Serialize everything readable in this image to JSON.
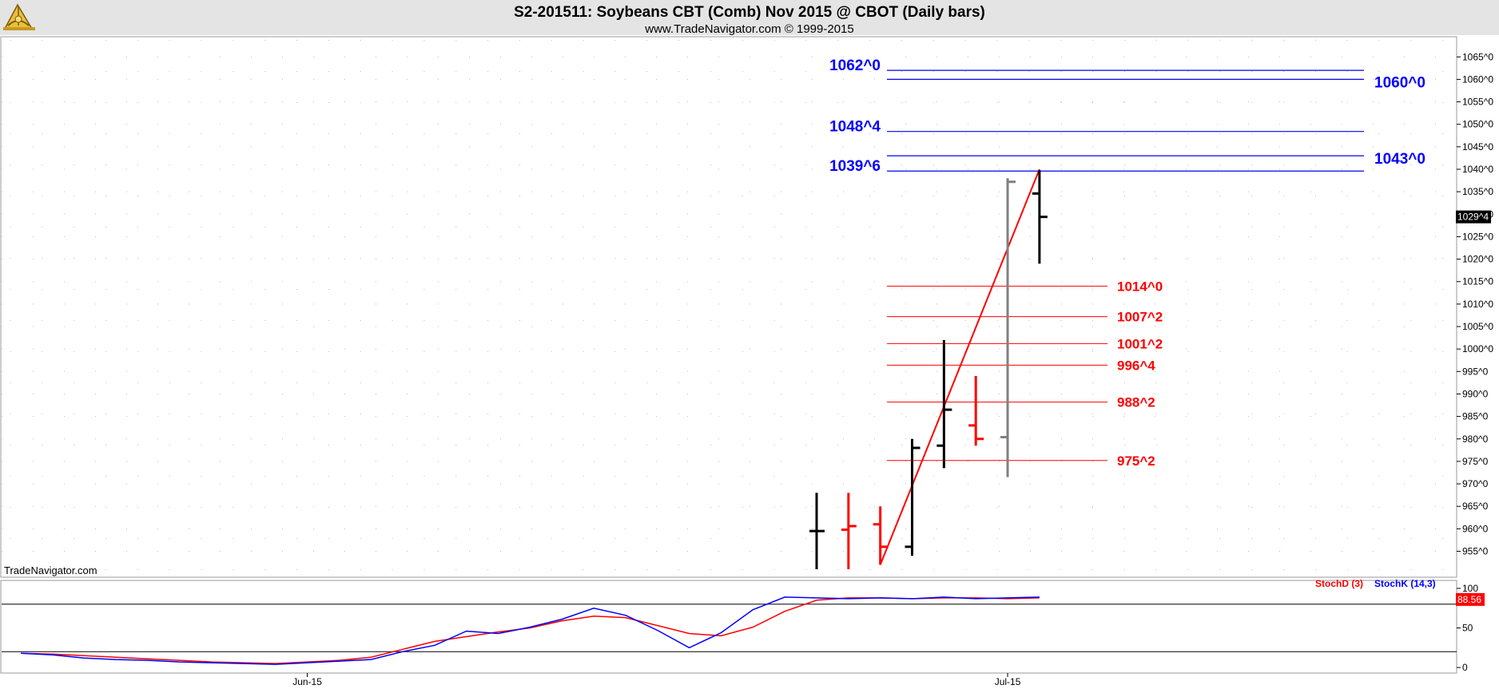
{
  "header": {
    "title": "S2-201511:  Soybeans CBT (Comb) Nov 2015 @ CBOT  (Daily bars)",
    "subtitle": "www.TradeNavigator.com © 1999-2015",
    "logo_icon": "sextant-logo-icon"
  },
  "watermark": "TradeNavigator.com",
  "colors": {
    "background": "#ffffff",
    "header_bg": "#e4e4e4",
    "up_bar": "#000000",
    "down_bar": "#ff0000",
    "gray_bar": "#808080",
    "blue_level": "#0000ff",
    "red_level": "#ff0000",
    "trendline": "#ff0000",
    "stoch_d": "#ff0000",
    "stoch_k": "#0000ff",
    "last_price_bg": "#000000",
    "stoch_badge_bg": "#ff0000"
  },
  "chart_data": [
    {
      "type": "ohlc",
      "ylim": [
        951,
        1067
      ],
      "grid": true,
      "y_ticks": [
        955,
        960,
        965,
        970,
        975,
        980,
        985,
        990,
        995,
        1000,
        1005,
        1010,
        1015,
        1020,
        1025,
        1030,
        1035,
        1040,
        1045,
        1050,
        1055,
        1060,
        1065
      ],
      "y_tick_labels": [
        "955^0",
        "960^0",
        "965^0",
        "970^0",
        "975^0",
        "980^0",
        "985^0",
        "990^0",
        "995^0",
        "1000^0",
        "1005^0",
        "1010^0",
        "1015^0",
        "1020^0",
        "1025^0",
        "1030^0",
        "1035^0",
        "1040^0",
        "1045^0",
        "1050^0",
        "1055^0",
        "1060^0",
        "1065^0"
      ],
      "x_labels": [
        {
          "label": "Jun-15",
          "index": 9
        },
        {
          "label": "Jul-15",
          "index": 31
        }
      ],
      "bars": [
        {
          "index": 25,
          "open": 959.5,
          "high": 968,
          "low": 951,
          "close": 959.5,
          "color": "black"
        },
        {
          "index": 26,
          "open": 959.8,
          "high": 968,
          "low": 951,
          "close": 960.6,
          "color": "red"
        },
        {
          "index": 27,
          "open": 961,
          "high": 965,
          "low": 952,
          "close": 956,
          "color": "red"
        },
        {
          "index": 28,
          "open": 956,
          "high": 980,
          "low": 954,
          "close": 978,
          "color": "black"
        },
        {
          "index": 29,
          "open": 978.5,
          "high": 1002,
          "low": 973.5,
          "close": 986.5,
          "color": "black"
        },
        {
          "index": 30,
          "open": 983,
          "high": 994,
          "low": 978.5,
          "close": 980,
          "color": "red"
        },
        {
          "index": 31,
          "open": 980.4,
          "high": 1038,
          "low": 971.5,
          "close": 1037.2,
          "color": "gray"
        },
        {
          "index": 32,
          "open": 1034.6,
          "high": 1039.8,
          "low": 1019,
          "close": 1029.4,
          "color": "black"
        }
      ],
      "last_price": 1029.4,
      "last_price_label": "1029^4",
      "trendline": {
        "from": {
          "index": 27,
          "price": 952
        },
        "to": {
          "index": 32,
          "price": 1040
        }
      },
      "resistance_levels": [
        {
          "price": 1062.0,
          "label": "1062^0",
          "label_side": "left"
        },
        {
          "price": 1060.0,
          "label": "1060^0",
          "label_side": "right"
        },
        {
          "price": 1048.4,
          "label": "1048^4",
          "label_side": "left"
        },
        {
          "price": 1043.0,
          "label": "1043^0",
          "label_side": "right"
        },
        {
          "price": 1039.6,
          "label": "1039^6",
          "label_side": "left"
        }
      ],
      "support_levels": [
        {
          "price": 1014.0,
          "label": "1014^0"
        },
        {
          "price": 1007.2,
          "label": "1007^2"
        },
        {
          "price": 1001.2,
          "label": "1001^2"
        },
        {
          "price": 996.4,
          "label": "996^4"
        },
        {
          "price": 988.2,
          "label": "988^2"
        },
        {
          "price": 975.2,
          "label": "975^2"
        }
      ]
    },
    {
      "type": "line",
      "ylim": [
        -6,
        102
      ],
      "y_ticks": [
        0,
        50,
        100
      ],
      "y_tick_labels": [
        "0",
        "50",
        "100"
      ],
      "reference_lines": [
        80,
        20
      ],
      "series": [
        {
          "name": "StochD (3)",
          "color": "red",
          "x": [
            0,
            1,
            2,
            3,
            4,
            5,
            6,
            7,
            8,
            9,
            10,
            11,
            12,
            13,
            14,
            15,
            16,
            17,
            18,
            19,
            20,
            21,
            22,
            23,
            24,
            25,
            26,
            27,
            28,
            29,
            30,
            31,
            32
          ],
          "values": [
            18,
            17,
            15,
            13,
            11,
            9,
            7,
            6,
            5,
            7,
            9,
            13,
            23,
            33,
            39,
            45,
            50,
            59,
            65,
            63,
            53,
            43,
            40,
            51,
            71,
            85,
            88,
            88,
            87,
            88,
            88,
            87,
            88
          ]
        },
        {
          "name": "StochK (14,3)",
          "color": "blue",
          "x": [
            0,
            1,
            2,
            3,
            4,
            5,
            6,
            7,
            8,
            9,
            10,
            11,
            12,
            13,
            14,
            15,
            16,
            17,
            18,
            19,
            20,
            21,
            22,
            23,
            24,
            25,
            26,
            27,
            28,
            29,
            30,
            31,
            32
          ],
          "values": [
            18,
            16,
            12,
            10,
            9,
            7,
            6,
            5,
            4,
            6,
            8,
            10,
            20,
            28,
            46,
            43,
            51,
            61,
            75,
            66,
            47,
            25,
            44,
            73,
            89,
            88,
            87,
            88,
            87,
            89,
            87,
            88,
            89
          ]
        }
      ],
      "last_value_label": "88.56"
    }
  ]
}
